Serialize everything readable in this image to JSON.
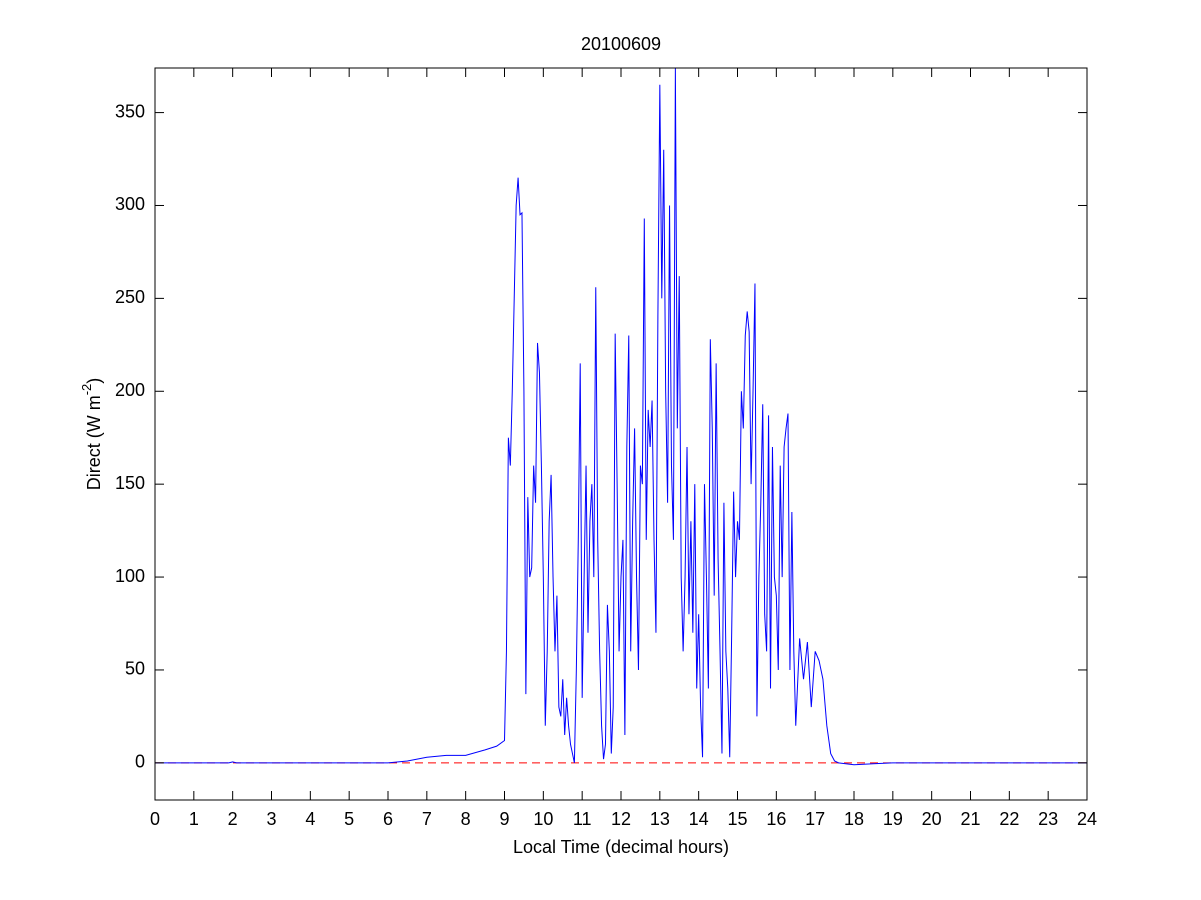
{
  "chart_data": {
    "type": "line",
    "title": "20100609",
    "x_label": "Local Time (decimal hours)",
    "y_label": {
      "text": "Direct (W m",
      "superscript": "-2",
      "suffix": ")"
    },
    "color": "#0000ff",
    "x": [
      0,
      1.9,
      2,
      2.1,
      6,
      6.5,
      7,
      7.5,
      8,
      8.5,
      8.8,
      9,
      9.05,
      9.1,
      9.15,
      9.2,
      9.25,
      9.3,
      9.35,
      9.4,
      9.45,
      9.5,
      9.55,
      9.6,
      9.65,
      9.7,
      9.75,
      9.8,
      9.85,
      9.9,
      9.95,
      10,
      10.05,
      10.1,
      10.15,
      10.2,
      10.25,
      10.3,
      10.35,
      10.4,
      10.45,
      10.5,
      10.55,
      10.6,
      10.65,
      10.7,
      10.75,
      10.8,
      10.85,
      10.9,
      10.95,
      11,
      11.05,
      11.1,
      11.15,
      11.2,
      11.25,
      11.3,
      11.35,
      11.4,
      11.45,
      11.5,
      11.55,
      11.6,
      11.65,
      11.7,
      11.75,
      11.8,
      11.85,
      11.9,
      11.95,
      12,
      12.05,
      12.1,
      12.15,
      12.2,
      12.25,
      12.3,
      12.35,
      12.4,
      12.45,
      12.5,
      12.55,
      12.6,
      12.65,
      12.7,
      12.75,
      12.8,
      12.85,
      12.9,
      12.95,
      13,
      13.05,
      13.1,
      13.15,
      13.2,
      13.25,
      13.3,
      13.35,
      13.4,
      13.45,
      13.5,
      13.55,
      13.6,
      13.65,
      13.7,
      13.75,
      13.8,
      13.85,
      13.9,
      13.95,
      14,
      14.05,
      14.1,
      14.15,
      14.2,
      14.25,
      14.3,
      14.35,
      14.4,
      14.45,
      14.5,
      14.55,
      14.6,
      14.65,
      14.7,
      14.75,
      14.8,
      14.85,
      14.9,
      14.95,
      15,
      15.05,
      15.1,
      15.15,
      15.2,
      15.25,
      15.3,
      15.35,
      15.4,
      15.45,
      15.5,
      15.55,
      15.6,
      15.65,
      15.7,
      15.75,
      15.8,
      15.85,
      15.9,
      15.95,
      16,
      16.05,
      16.1,
      16.15,
      16.2,
      16.25,
      16.3,
      16.35,
      16.4,
      16.45,
      16.5,
      16.6,
      16.7,
      16.8,
      16.9,
      17,
      17.1,
      17.2,
      17.3,
      17.4,
      17.5,
      17.6,
      18,
      18.5,
      19,
      24
    ],
    "values": [
      0,
      0,
      0.5,
      0,
      0,
      1,
      3,
      4,
      4,
      7,
      9,
      12,
      60,
      175,
      160,
      200,
      250,
      300,
      315,
      295,
      296,
      200,
      37,
      143,
      100,
      105,
      160,
      140,
      226,
      210,
      160,
      100,
      20,
      60,
      130,
      155,
      100,
      60,
      90,
      30,
      25,
      45,
      15,
      35,
      20,
      10,
      5,
      0,
      50,
      120,
      215,
      35,
      100,
      160,
      70,
      130,
      150,
      100,
      256,
      120,
      60,
      20,
      2,
      10,
      85,
      60,
      5,
      30,
      231,
      150,
      60,
      100,
      120,
      15,
      170,
      230,
      60,
      130,
      180,
      100,
      50,
      160,
      150,
      293,
      120,
      190,
      170,
      195,
      120,
      70,
      240,
      365,
      250,
      330,
      200,
      140,
      300,
      160,
      120,
      374,
      180,
      262,
      100,
      60,
      100,
      170,
      80,
      130,
      70,
      150,
      40,
      80,
      30,
      3,
      150,
      100,
      40,
      228,
      180,
      90,
      215,
      110,
      60,
      5,
      140,
      60,
      40,
      3,
      70,
      146,
      100,
      130,
      120,
      200,
      180,
      230,
      243,
      232,
      150,
      200,
      258,
      25,
      100,
      140,
      193,
      80,
      60,
      187,
      40,
      170,
      100,
      90,
      50,
      160,
      100,
      170,
      180,
      188,
      50,
      135,
      60,
      20,
      67,
      45,
      65,
      30,
      60,
      55,
      45,
      20,
      5,
      1,
      0,
      -1,
      -0.5,
      0,
      0
    ],
    "hline": {
      "value": 0,
      "color": "#ff0000",
      "dashed": true
    },
    "xlim": [
      0,
      24
    ],
    "xticks": [
      0,
      1,
      2,
      3,
      4,
      5,
      6,
      7,
      8,
      9,
      10,
      11,
      12,
      13,
      14,
      15,
      16,
      17,
      18,
      19,
      20,
      21,
      22,
      23,
      24
    ],
    "ylim": [
      -20,
      374
    ],
    "yticks": [
      0,
      50,
      100,
      150,
      200,
      250,
      300,
      350
    ]
  }
}
